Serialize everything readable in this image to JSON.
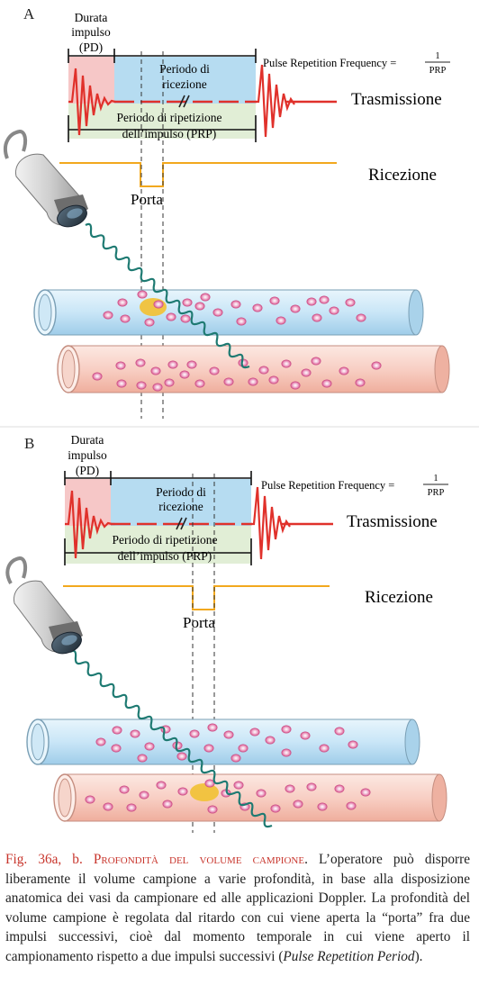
{
  "colors": {
    "pulse": "#e0312b",
    "pd_fill": "#f6c7c7",
    "reception_fill": "#b6dcf1",
    "prp_fill": "#dcebcf",
    "gate_line": "#f2a81e",
    "gate_blob": "#f1c23a",
    "wave": "#1e7a72",
    "vessel_blue": "#cde7f7",
    "vessel_red": "#f9d2c8",
    "cell": "#e0699e",
    "caption_accent": "#c8352c"
  },
  "panels": [
    {
      "letter": "A",
      "pd_label_1": "Durata",
      "pd_label_2": "impulso",
      "pd_label_3": "(PD)",
      "reception_label_1": "Periodo di",
      "reception_label_2": "ricezione",
      "prp_label_1": "Periodo di ripetizione",
      "prp_label_2": "dell’impulso (PRP)",
      "prf_label": "Pulse Repetition Frequency =",
      "prf_num": "1",
      "prf_den": "PRP",
      "transmission_label": "Trasmissione",
      "reception_row_label": "Ricezione",
      "gate_label": "Porta"
    },
    {
      "letter": "B",
      "pd_label_1": "Durata",
      "pd_label_2": "impulso",
      "pd_label_3": "(PD)",
      "reception_label_1": "Periodo di",
      "reception_label_2": "ricezione",
      "prp_label_1": "Periodo di ripetizione",
      "prp_label_2": "dell’impulso (PRP)",
      "prf_label": "Pulse Repetition Frequency =",
      "prf_num": "1",
      "prf_den": "PRP",
      "transmission_label": "Trasmissione",
      "reception_row_label": "Ricezione",
      "gate_label": "Porta"
    }
  ],
  "caption": {
    "fig": "Fig. 36a, b.",
    "head": "Profondità del volume campione",
    "body_1": ". L’operatore può disporre liberamente il volume campione a varie profondità, in base alla disposizione anatomica dei vasi da campionare ed alle applicazioni Doppler. La profondità del volume campione è regolata dal ritardo con cui viene aperta la “porta” fra due impulsi successivi, cioè dal momento temporale in cui viene aperto il campionamento rispetto a due impulsi successivi (",
    "italic": "Pulse Repetition Period",
    "body_2": ")."
  }
}
